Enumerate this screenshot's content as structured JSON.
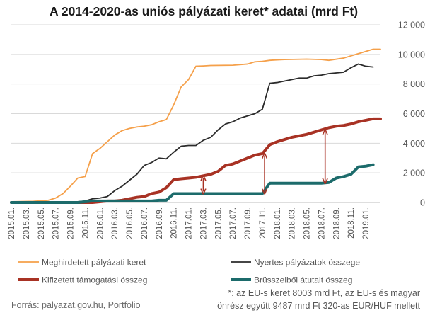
{
  "chart_data": {
    "type": "line",
    "title": "A 2014-2020-as uniós pályázati keret* adatai (mrd Ft)",
    "xlabel": "",
    "ylabel": "",
    "ylim": [
      0,
      12000
    ],
    "yticks": [
      "12 000",
      "10 000",
      "8 000",
      "6 000",
      "4 000",
      "2 000",
      "0"
    ],
    "ytick_values": [
      12000,
      10000,
      8000,
      6000,
      4000,
      2000,
      0
    ],
    "grid": true,
    "x_start": "2015.01",
    "x_count": 51,
    "x_tick_labels": [
      "2015.01.",
      "2015.03.",
      "2015.05.",
      "2015.07.",
      "2015.09.",
      "2015.11.",
      "2016.01.",
      "2016.03.",
      "2016.05.",
      "2016.07.",
      "2016.09.",
      "2016.11.",
      "2017.01.",
      "2017.03.",
      "2017.05.",
      "2017.07.",
      "2017.09.",
      "2017.11.",
      "2018.01.",
      "2018.03.",
      "2018.05.",
      "2018.07.",
      "2018.09.",
      "2018.11.",
      "2019.01."
    ],
    "series": [
      {
        "name": "Meghirdetett pályázati keret",
        "color": "#F5A04A",
        "width": 1.8,
        "points": [
          [
            0,
            50
          ],
          [
            3,
            80
          ],
          [
            5,
            150
          ],
          [
            6,
            300
          ],
          [
            7,
            600
          ],
          [
            8,
            1100
          ],
          [
            9,
            1650
          ],
          [
            10,
            1750
          ],
          [
            11,
            3300
          ],
          [
            12,
            3650
          ],
          [
            13,
            4100
          ],
          [
            14,
            4550
          ],
          [
            15,
            4850
          ],
          [
            16,
            5000
          ],
          [
            17,
            5100
          ],
          [
            18,
            5150
          ],
          [
            19,
            5250
          ],
          [
            20,
            5450
          ],
          [
            21,
            5600
          ],
          [
            22,
            6600
          ],
          [
            23,
            7800
          ],
          [
            24,
            8300
          ],
          [
            25,
            9200
          ],
          [
            26,
            9220
          ],
          [
            27,
            9250
          ],
          [
            30,
            9270
          ],
          [
            32,
            9350
          ],
          [
            33,
            9500
          ],
          [
            34,
            9530
          ],
          [
            35,
            9600
          ],
          [
            36,
            9630
          ],
          [
            37,
            9650
          ],
          [
            40,
            9680
          ],
          [
            42,
            9650
          ],
          [
            43,
            9600
          ],
          [
            45,
            9750
          ],
          [
            47,
            10050
          ],
          [
            48,
            10200
          ],
          [
            49,
            10350
          ],
          [
            50,
            10350
          ]
        ]
      },
      {
        "name": "Nyertes pályázatok összege",
        "color": "#2B2B2B",
        "width": 1.8,
        "points": [
          [
            0,
            0
          ],
          [
            8,
            0
          ],
          [
            9,
            50
          ],
          [
            10,
            100
          ],
          [
            11,
            250
          ],
          [
            12,
            300
          ],
          [
            13,
            400
          ],
          [
            14,
            800
          ],
          [
            15,
            1100
          ],
          [
            16,
            1500
          ],
          [
            17,
            1900
          ],
          [
            18,
            2500
          ],
          [
            19,
            2700
          ],
          [
            20,
            3000
          ],
          [
            21,
            2950
          ],
          [
            22,
            3400
          ],
          [
            23,
            3800
          ],
          [
            24,
            3850
          ],
          [
            25,
            3850
          ],
          [
            26,
            4200
          ],
          [
            27,
            4400
          ],
          [
            28,
            4900
          ],
          [
            29,
            5300
          ],
          [
            30,
            5450
          ],
          [
            31,
            5700
          ],
          [
            32,
            5850
          ],
          [
            33,
            6000
          ],
          [
            34,
            6300
          ],
          [
            35,
            8050
          ],
          [
            36,
            8100
          ],
          [
            37,
            8200
          ],
          [
            38,
            8300
          ],
          [
            39,
            8400
          ],
          [
            40,
            8400
          ],
          [
            41,
            8550
          ],
          [
            42,
            8600
          ],
          [
            43,
            8700
          ],
          [
            44,
            8750
          ],
          [
            45,
            8800
          ],
          [
            46,
            9100
          ],
          [
            47,
            9350
          ],
          [
            48,
            9200
          ],
          [
            49,
            9150
          ]
        ]
      },
      {
        "name": "Kifizetett támogatási összeg",
        "color": "#A83224",
        "width": 4,
        "points": [
          [
            0,
            0
          ],
          [
            11,
            0
          ],
          [
            12,
            50
          ],
          [
            13,
            100
          ],
          [
            14,
            100
          ],
          [
            15,
            150
          ],
          [
            16,
            250
          ],
          [
            17,
            350
          ],
          [
            18,
            400
          ],
          [
            19,
            600
          ],
          [
            20,
            700
          ],
          [
            21,
            1000
          ],
          [
            22,
            1550
          ],
          [
            23,
            1600
          ],
          [
            24,
            1650
          ],
          [
            25,
            1700
          ],
          [
            26,
            1800
          ],
          [
            27,
            1900
          ],
          [
            28,
            2100
          ],
          [
            29,
            2500
          ],
          [
            30,
            2600
          ],
          [
            31,
            2800
          ],
          [
            32,
            3000
          ],
          [
            33,
            3200
          ],
          [
            34,
            3300
          ],
          [
            35,
            3900
          ],
          [
            36,
            4100
          ],
          [
            37,
            4250
          ],
          [
            38,
            4400
          ],
          [
            39,
            4500
          ],
          [
            40,
            4600
          ],
          [
            41,
            4750
          ],
          [
            42,
            4900
          ],
          [
            43,
            5050
          ],
          [
            44,
            5150
          ],
          [
            45,
            5200
          ],
          [
            46,
            5300
          ],
          [
            47,
            5450
          ],
          [
            48,
            5550
          ],
          [
            49,
            5650
          ],
          [
            50,
            5650
          ]
        ]
      },
      {
        "name": "Brüsszelből átutalt összeg",
        "color": "#1C6B6B",
        "width": 4,
        "points": [
          [
            0,
            0
          ],
          [
            9,
            0
          ],
          [
            10,
            50
          ],
          [
            11,
            100
          ],
          [
            19,
            100
          ],
          [
            20,
            150
          ],
          [
            21,
            150
          ],
          [
            22,
            600
          ],
          [
            26,
            600
          ],
          [
            34,
            600
          ],
          [
            35,
            1300
          ],
          [
            42,
            1300
          ],
          [
            43,
            1350
          ],
          [
            44,
            1650
          ],
          [
            45,
            1750
          ],
          [
            46,
            1900
          ],
          [
            47,
            2400
          ],
          [
            48,
            2450
          ],
          [
            49,
            2550
          ]
        ]
      }
    ],
    "arrows": [
      {
        "x": 26,
        "y_from": 600,
        "y_to": 1800
      },
      {
        "x": 34.3,
        "y_from": 600,
        "y_to": 3300
      },
      {
        "x": 42.5,
        "y_from": 1300,
        "y_to": 4900
      }
    ],
    "arrow_color": "#A83224"
  },
  "source_text": "Forrás: palyazat.gov.hu, Portfolio",
  "footnote_line1": "*: az EU-s keret 8003 mrd Ft, az EU-s és magyar",
  "footnote_line2": "önrész együtt 9487 mrd Ft 320-as EUR/HUF mellett"
}
